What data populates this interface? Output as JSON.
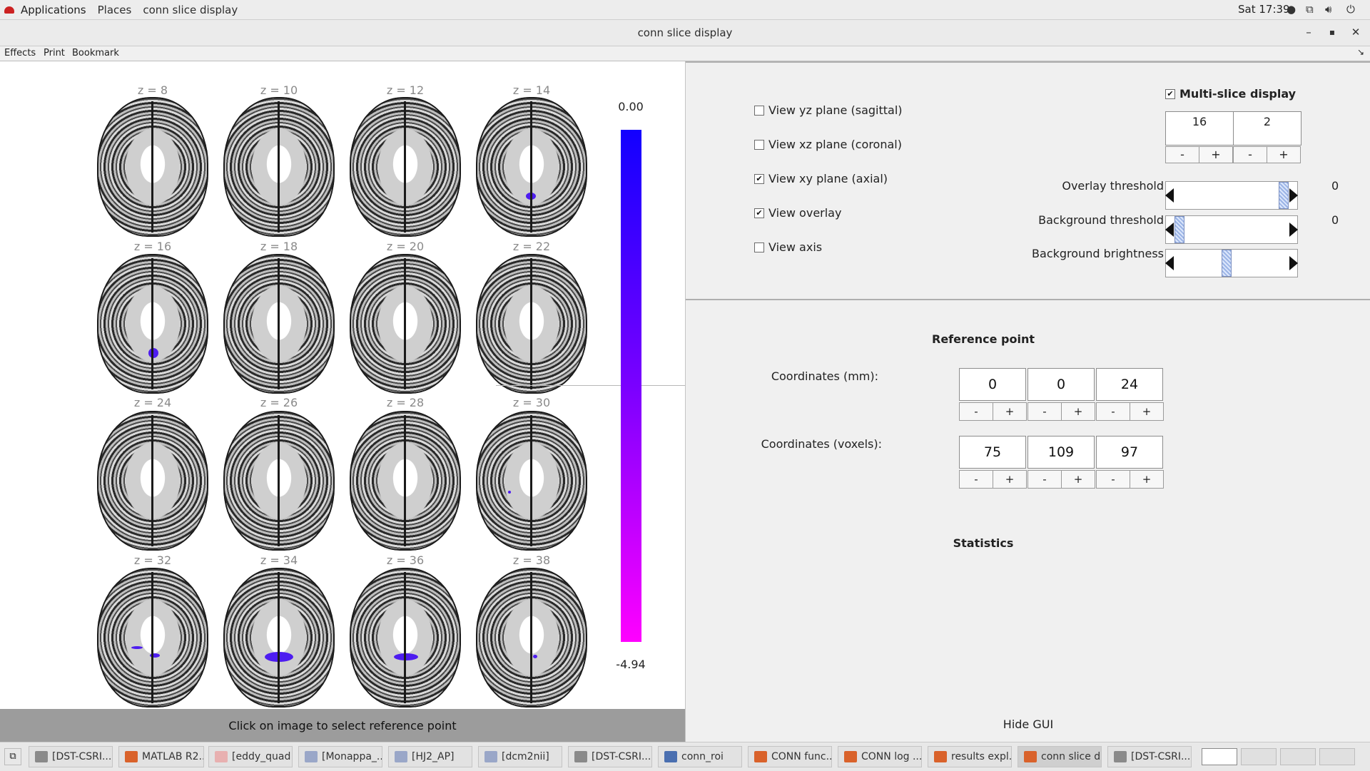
{
  "topbar": {
    "applications": "Applications",
    "places": "Places",
    "active_app": "conn slice display",
    "clock": "Sat 17:39"
  },
  "window": {
    "title": "conn slice display"
  },
  "menubar": {
    "items": [
      "Effects",
      "Print",
      "Bookmark"
    ]
  },
  "slices": {
    "labels": [
      "z = 8",
      "z = 10",
      "z = 12",
      "z = 14",
      "z = 16",
      "z = 18",
      "z = 20",
      "z = 22",
      "z = 24",
      "z = 26",
      "z = 28",
      "z = 30",
      "z = 32",
      "z = 34",
      "z = 36",
      "z = 38"
    ]
  },
  "colorbar": {
    "max_label": "0.00",
    "min_label": "-4.94",
    "colors": [
      "#1200ff",
      "#7a00ff",
      "#ff00ff"
    ]
  },
  "status": {
    "message": "Click on image to select reference point"
  },
  "controls": {
    "view_yz": "View yz plane (sagittal)",
    "view_xz": "View xz plane (coronal)",
    "view_xy": "View xy plane (axial)",
    "view_overlay": "View overlay",
    "view_axis": "View axis",
    "check_yz": "",
    "check_xz": "",
    "check_xy": "✔",
    "check_overlay": "✔",
    "check_axis": "",
    "multislice": "Multi-slice display",
    "check_multislice": "✔",
    "multislice_count": "16",
    "multislice_step": "2",
    "minus": "-",
    "plus": "+",
    "overlay_threshold": "Overlay threshold",
    "overlay_threshold_value": "0",
    "background_threshold": "Background threshold",
    "background_threshold_value": "0",
    "background_brightness": "Background brightness"
  },
  "slider_levels": {
    "overlay_threshold": 1.0,
    "background_threshold": 0.0,
    "background_brightness": 0.45
  },
  "reference": {
    "title": "Reference point",
    "coords_mm_label": "Coordinates (mm):",
    "coords_mm": [
      "0",
      "0",
      "24"
    ],
    "coords_vox_label": "Coordinates (voxels):",
    "coords_vox": [
      "75",
      "109",
      "97"
    ]
  },
  "statistics": {
    "title": "Statistics"
  },
  "hide_gui": "Hide GUI",
  "taskbar": {
    "tasks": [
      "[DST-CSRI...",
      "MATLAB R2...",
      "[eddy_quad ...",
      "[Monappa_...",
      "[HJ2_AP]",
      "[dcm2nii]",
      "[DST-CSRI...",
      "conn_roi",
      "CONN func...",
      "CONN log ...",
      "results expl...",
      "conn slice d...",
      "[DST-CSRI..."
    ],
    "active_task": "conn slice d..."
  }
}
